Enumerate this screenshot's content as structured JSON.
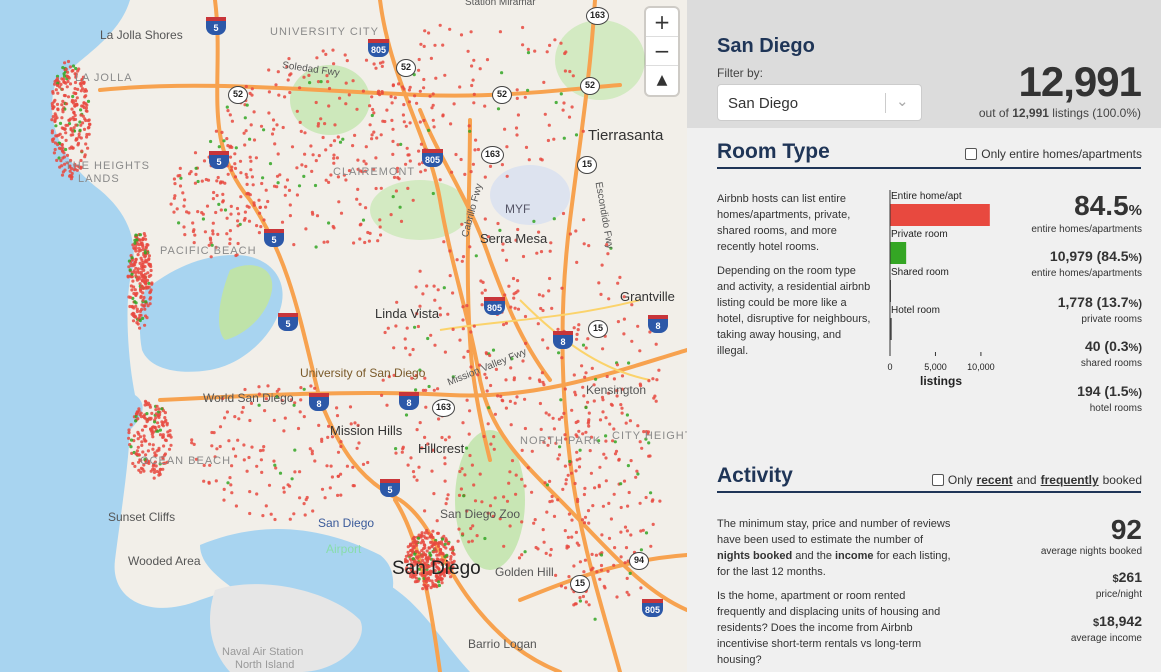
{
  "map": {
    "zoom_in": "+",
    "zoom_out": "−",
    "compass": "▲",
    "labels": {
      "station_miramar": "Station Miramar",
      "la_jolla_shores": "La Jolla Shores",
      "la_jolla": "LA JOLLA",
      "university_city": "UNIVERSITY CITY",
      "soledad_fwy": "Soledad Fwy",
      "the_heights": "THE HEIGHTS",
      "lands": "LANDS",
      "clairemont": "CLAIREMONT",
      "myf": "MYF",
      "serra_mesa": "Serra Mesa",
      "tierrasanta": "Tierrasanta",
      "cabrillo_fwy": "Cabrillo Fwy",
      "escondido_fwy": "Escondido Fwy",
      "pacific_beach": "PACIFIC BEACH",
      "grantville": "Grantville",
      "linda_vista": "Linda Vista",
      "university_of_san_diego": "University of San Diego",
      "mission_valley_fwy": "Mission Valley Fwy",
      "kensington": "Kensington",
      "world_san_diego": "World San Diego",
      "mission_hills": "Mission Hills",
      "hillcrest": "Hillcrest",
      "north_park": "NORTH PARK",
      "city_heights": "CITY HEIGHTS",
      "ocean_beach": "OCEAN BEACH",
      "san_diego_zoo": "San Diego Zoo",
      "sunset_cliffs": "Sunset Cliffs",
      "san_diego_airport": "San Diego",
      "airport": "Airport",
      "wooded_area": "Wooded Area",
      "san_diego_big": "San Diego",
      "golden_hill": "Golden Hill",
      "barrio_logan": "Barrio Logan",
      "naval_air_station": "Naval Air Station",
      "north_island": "North Island"
    },
    "shields": {
      "s163a": "163",
      "s805a": "805",
      "s52a": "52",
      "s52b": "52",
      "s52c": "52",
      "s52d": "52",
      "s5a": "5",
      "s5b": "5",
      "s5c": "5",
      "s5d": "5",
      "s5e": "5",
      "s805b": "805",
      "s805c": "805",
      "s805d": "805",
      "s163b": "163",
      "s163c": "163",
      "s15a": "15",
      "s15b": "15",
      "s15c": "15",
      "s8a": "8",
      "s8b": "8",
      "s8c": "8",
      "s8d": "8",
      "s94": "94"
    }
  },
  "header": {
    "city": "San Diego",
    "filter_label": "Filter by:",
    "filter_value": "San Diego",
    "total": "12,991",
    "out_of_prefix": "out of",
    "out_of_count": "12,991",
    "out_of_suffix": "listings (100.0%)"
  },
  "room_type": {
    "title": "Room Type",
    "checkbox_label": "Only entire homes/apartments",
    "para1": "Airbnb hosts can list entire homes/apartments, private, shared rooms, and more recently hotel rooms.",
    "para2": "Depending on the room type and activity, a residential airbnb listing could be more like a hotel, disruptive for neighbours, taking away housing, and illegal.",
    "pct_value": "84.5",
    "pct_unit": "%",
    "pct_label": "entire homes/apartments",
    "stats": [
      {
        "value": "10,979 (84.5",
        "unit": "%)",
        "label": "entire homes/apartments"
      },
      {
        "value": "1,778 (13.7",
        "unit": "%)",
        "label": "private rooms"
      },
      {
        "value": "40 (0.3",
        "unit": "%)",
        "label": "shared rooms"
      },
      {
        "value": "194 (1.5",
        "unit": "%)",
        "label": "hotel rooms"
      }
    ]
  },
  "activity": {
    "title": "Activity",
    "checkbox_prefix": "Only",
    "checkbox_recent": "recent",
    "checkbox_and": "and",
    "checkbox_frequently": "frequently",
    "checkbox_suffix": "booked",
    "para1_a": "The minimum stay, price and number of reviews have been used to estimate the number of",
    "para1_b": "nights booked",
    "para1_c": "and the",
    "para1_d": "income",
    "para1_e": "for each listing, for the last 12 months.",
    "para2": "Is the home, apartment or room rented frequently and displacing units of housing and residents? Does the income from Airbnb incentivise short-term rentals vs long-term housing?",
    "nights_value": "92",
    "nights_label": "average nights booked",
    "price_cur": "$",
    "price_value": "261",
    "price_label": "price/night",
    "income_cur": "$",
    "income_value": "18,942",
    "income_label": "average income"
  },
  "chart_data": {
    "type": "bar",
    "orientation": "horizontal",
    "categories": [
      "Entire home/apt",
      "Private room",
      "Shared room",
      "Hotel room"
    ],
    "values": [
      10979,
      1778,
      40,
      194
    ],
    "xlabel": "listings",
    "xlim": [
      0,
      11000
    ],
    "xticks": [
      0,
      5000,
      10000
    ],
    "xtick_labels": [
      "0",
      "5,000",
      "10,000"
    ],
    "colors": [
      "#e8493f",
      "#34a624",
      "#555555",
      "#555555"
    ]
  }
}
